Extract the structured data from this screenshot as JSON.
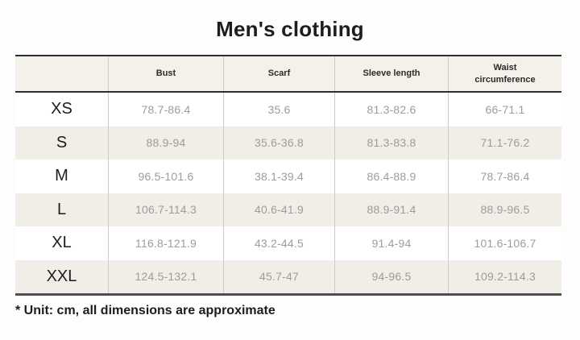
{
  "chart_data": {
    "type": "table",
    "title": "Men's clothing",
    "columns": [
      "",
      "Bust",
      "Scarf",
      "Sleeve length",
      "Waist circumference"
    ],
    "rows": [
      {
        "size": "XS",
        "values": [
          "78.7-86.4",
          "35.6",
          "81.3-82.6",
          "66-71.1"
        ]
      },
      {
        "size": "S",
        "values": [
          "88.9-94",
          "35.6-36.8",
          "81.3-83.8",
          "71.1-76.2"
        ]
      },
      {
        "size": "M",
        "values": [
          "96.5-101.6",
          "38.1-39.4",
          "86.4-88.9",
          "78.7-86.4"
        ]
      },
      {
        "size": "L",
        "values": [
          "106.7-114.3",
          "40.6-41.9",
          "88.9-91.4",
          "88.9-96.5"
        ]
      },
      {
        "size": "XL",
        "values": [
          "116.8-121.9",
          "43.2-44.5",
          "91.4-94",
          "101.6-106.7"
        ]
      },
      {
        "size": "XXL",
        "values": [
          "124.5-132.1",
          "45.7-47",
          "94-96.5",
          "109.2-114.3"
        ]
      }
    ],
    "footnote": "* Unit: cm, all dimensions are approximate",
    "layout": {
      "stripe_odd_rows": [
        "S",
        "L",
        "XXL"
      ],
      "grid": "horizontal rules top/header/bottom, light vertical separators"
    },
    "colors": {
      "page_background": "#fdfdfd",
      "header_background": "#f4f1eb",
      "stripe_background": "#f1eee8",
      "rule_dark": "#2e2e2e",
      "rule_bottom": "#4f4f4f",
      "separator": "#cccbc7",
      "value_text": "#9c9c9c",
      "label_text": "#1c1c1c"
    }
  }
}
